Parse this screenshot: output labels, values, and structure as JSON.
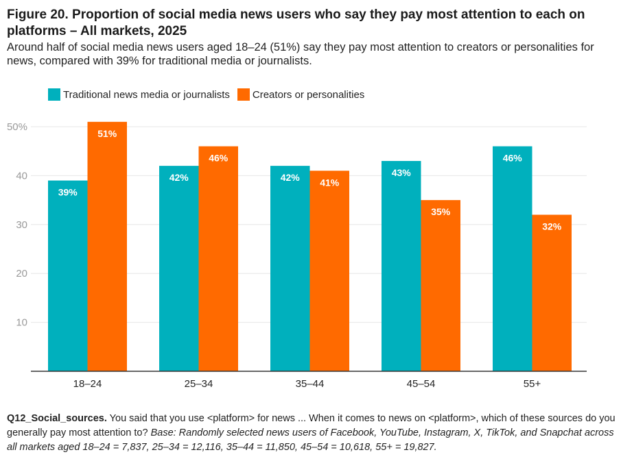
{
  "header": {
    "title": "Figure 20. Proportion of social media news users who say they pay most attention to each on platforms – All markets, 2025",
    "subtitle": "Around half of social media news users aged 18–24 (51%) say they pay most attention to creators or personalities for news, compared with 39% for traditional media or journalists."
  },
  "colors": {
    "traditional": "#00B0BD",
    "creators": "#FF6A00",
    "grid": "#e6e6e6",
    "axis": "#333333",
    "tick_text": "#999999"
  },
  "footnote": {
    "question_id": "Q12_Social_sources.",
    "question": " You said that you use <platform> for news ... When it comes to news on <platform>, which of these sources do you generally pay most attention to? ",
    "base": "Base: Randomly selected news users of Facebook, YouTube, Instagram, X, TikTok, and Snapchat across all markets aged 18–24 = 7,837, 25–34 = 12,116, 35–44 = 11,850, 45–54 = 10,618, 55+ = 19,827."
  },
  "chart_data": {
    "type": "bar",
    "title": "Figure 20. Proportion of social media news users who say they pay most attention to each on platforms – All markets, 2025",
    "xlabel": "",
    "ylabel": "",
    "categories": [
      "18–24",
      "25–34",
      "35–44",
      "45–54",
      "55+"
    ],
    "series": [
      {
        "name": "Traditional news media or journalists",
        "color": "#00B0BD",
        "values": [
          39,
          42,
          42,
          43,
          46
        ],
        "labels": [
          "39%",
          "42%",
          "42%",
          "43%",
          "46%"
        ]
      },
      {
        "name": "Creators or personalities",
        "color": "#FF6A00",
        "values": [
          51,
          46,
          41,
          35,
          32
        ],
        "labels": [
          "51%",
          "46%",
          "41%",
          "35%",
          "32%"
        ]
      }
    ],
    "ylim": [
      0,
      50
    ],
    "yticks": [
      10,
      20,
      30,
      40,
      50
    ],
    "ytick_labels": [
      "10",
      "20",
      "30",
      "40",
      "50%"
    ],
    "grid": true,
    "legend_position": "top-left"
  }
}
